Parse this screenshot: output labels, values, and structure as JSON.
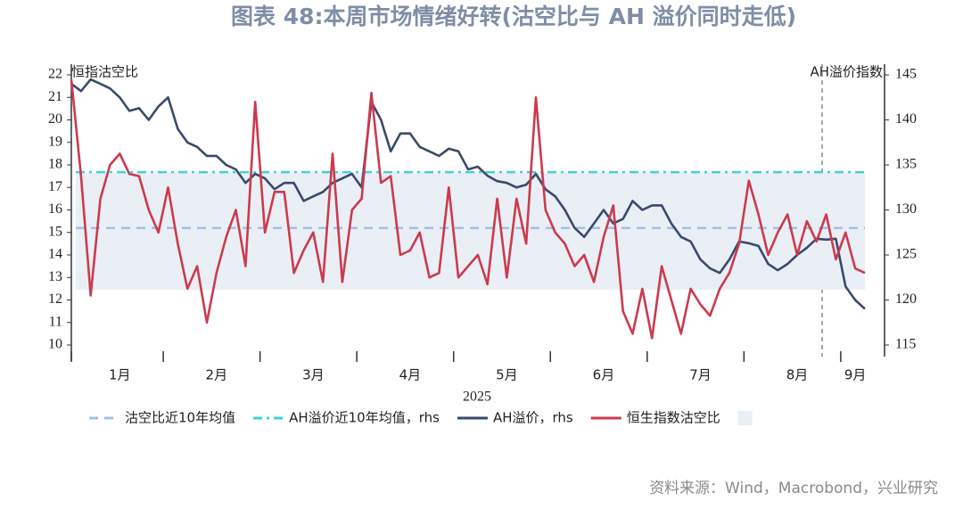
{
  "chart_data": {
    "type": "line",
    "title": "图表 48:本周市场情绪好转(沽空比与 AH 溢价同时走低)",
    "ylabel": "恒指沽空比",
    "y2label": "AH溢价指数",
    "xlabel": "2025",
    "source": "资料来源：Wind，Macrobond，兴业研究",
    "ylim": [
      10,
      22
    ],
    "yticks": [
      10,
      11,
      12,
      13,
      14,
      15,
      16,
      17,
      18,
      19,
      20,
      21,
      22
    ],
    "y2lim": [
      115,
      145
    ],
    "y2ticks": [
      115,
      120,
      125,
      130,
      135,
      140,
      145
    ],
    "categories": [
      null,
      null,
      null,
      null,
      null,
      "1月",
      null,
      null,
      null,
      null,
      null,
      null,
      null,
      null,
      null,
      "2月",
      null,
      null,
      null,
      null,
      null,
      null,
      null,
      null,
      null,
      "3月",
      null,
      null,
      null,
      null,
      null,
      null,
      null,
      null,
      null,
      "4月",
      null,
      null,
      null,
      null,
      null,
      null,
      null,
      null,
      null,
      "5月",
      null,
      null,
      null,
      null,
      null,
      null,
      null,
      null,
      null,
      "6月",
      null,
      null,
      null,
      null,
      null,
      null,
      null,
      null,
      null,
      "7月",
      null,
      null,
      null,
      null,
      null,
      null,
      null,
      null,
      null,
      "8月",
      null,
      null,
      null,
      null,
      null,
      "9月",
      null
    ],
    "series": [
      {
        "name": "沽空比近10年均值",
        "color": "#a3c0e6",
        "dash": "dashed",
        "value": 15.2
      },
      {
        "name": "AH溢价近10年均值，rhs",
        "color": "#3fd2d6",
        "dash": "dashdot",
        "axis": "y2",
        "value": 134.2
      },
      {
        "name": "AH溢价，rhs",
        "color": "#3a4a6c",
        "axis": "y2",
        "values": [
          144,
          143.2,
          144.5,
          144,
          143.5,
          142.5,
          141,
          141.3,
          140,
          141.5,
          142.5,
          139,
          137.5,
          137,
          136,
          136,
          135,
          134.5,
          133,
          134,
          133.5,
          132.3,
          133,
          133,
          131,
          131.5,
          132,
          133,
          133.5,
          134,
          132.5,
          142,
          140,
          136.5,
          138.5,
          138.5,
          137,
          136.5,
          136,
          136.8,
          136.5,
          134.5,
          134.8,
          133.8,
          133.2,
          133,
          132.5,
          132.8,
          134,
          132.3,
          131.5,
          130,
          128,
          127,
          128.5,
          130,
          128.5,
          129,
          131,
          130,
          130.5,
          130.5,
          128.5,
          127,
          126.5,
          124.5,
          123.5,
          123,
          124.5,
          126.5,
          126.3,
          126,
          124,
          123.3,
          124,
          125,
          125.8,
          126.8,
          126.7,
          126.8,
          121.5,
          120,
          119
        ]
      },
      {
        "name": "恒生指数沽空比",
        "color": "#cc3a4e",
        "values": [
          21.8,
          17.5,
          12.2,
          16.5,
          18,
          18.5,
          17.6,
          17.5,
          16,
          15,
          17,
          14.5,
          12.5,
          13.5,
          11,
          13.2,
          14.8,
          16,
          13.5,
          20.8,
          15,
          16.8,
          16.8,
          13.2,
          14.2,
          15,
          12.8,
          18.5,
          12.8,
          16,
          16.5,
          21.2,
          17.2,
          17.5,
          14,
          14.2,
          15,
          13,
          13.2,
          17,
          13,
          13.5,
          14,
          12.7,
          16.5,
          13,
          16.5,
          14.5,
          21,
          16,
          15,
          14.5,
          13.5,
          14,
          12.8,
          14.8,
          16.2,
          11.5,
          10.5,
          12.5,
          10.3,
          13.5,
          12,
          10.5,
          12.5,
          11.8,
          11.3,
          12.5,
          13.2,
          14.5,
          17.3,
          15.8,
          14,
          15,
          15.8,
          14,
          15.5,
          14.6,
          15.8,
          13.8,
          15,
          13.4,
          13.2
        ]
      },
      {
        "color": "#eaeff6",
        "range": [
          12.45,
          17.66
        ]
      }
    ]
  }
}
